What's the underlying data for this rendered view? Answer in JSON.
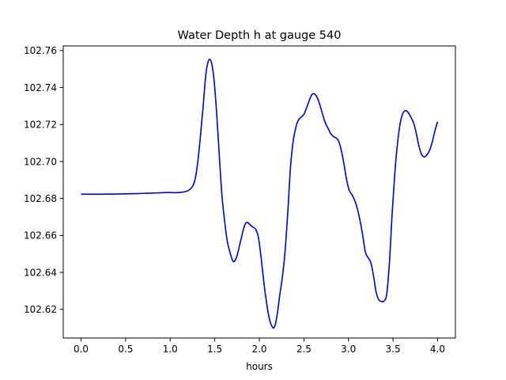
{
  "chart_data": {
    "type": "line",
    "title": "Water Depth h at gauge 540",
    "xlabel": "hours",
    "ylabel": "",
    "xlim": [
      -0.2,
      4.2
    ],
    "ylim": [
      102.6045,
      102.7625
    ],
    "xticks": [
      0.0,
      0.5,
      1.0,
      1.5,
      2.0,
      2.5,
      3.0,
      3.5,
      4.0
    ],
    "xtick_labels": [
      "0.0",
      "0.5",
      "1.0",
      "1.5",
      "2.0",
      "2.5",
      "3.0",
      "3.5",
      "4.0"
    ],
    "yticks": [
      102.62,
      102.64,
      102.66,
      102.68,
      102.7,
      102.72,
      102.74,
      102.76
    ],
    "ytick_labels": [
      "102.62",
      "102.64",
      "102.66",
      "102.68",
      "102.70",
      "102.72",
      "102.74",
      "102.76"
    ],
    "grid": false,
    "series": [
      {
        "color": "#0000cc",
        "x": [
          0.0,
          0.2,
          0.4,
          0.6,
          0.8,
          0.9,
          1.0,
          1.05,
          1.1,
          1.15,
          1.2,
          1.25,
          1.28,
          1.31,
          1.34,
          1.37,
          1.4,
          1.43,
          1.46,
          1.49,
          1.52,
          1.55,
          1.58,
          1.61,
          1.64,
          1.67,
          1.7,
          1.72,
          1.75,
          1.78,
          1.81,
          1.84,
          1.87,
          1.9,
          1.93,
          1.96,
          1.99,
          2.02,
          2.05,
          2.08,
          2.11,
          2.14,
          2.17,
          2.2,
          2.23,
          2.26,
          2.29,
          2.32,
          2.35,
          2.38,
          2.41,
          2.44,
          2.47,
          2.5,
          2.53,
          2.56,
          2.59,
          2.62,
          2.65,
          2.68,
          2.71,
          2.74,
          2.77,
          2.8,
          2.83,
          2.86,
          2.89,
          2.92,
          2.95,
          2.98,
          3.01,
          3.04,
          3.07,
          3.1,
          3.13,
          3.16,
          3.19,
          3.22,
          3.25,
          3.28,
          3.31,
          3.34,
          3.37,
          3.4,
          3.43,
          3.46,
          3.49,
          3.52,
          3.55,
          3.58,
          3.61,
          3.64,
          3.67,
          3.7,
          3.73,
          3.76,
          3.79,
          3.82,
          3.85,
          3.88,
          3.91,
          3.94,
          3.97,
          4.0
        ],
        "y": [
          102.6823,
          102.6823,
          102.6824,
          102.6826,
          102.6829,
          102.6831,
          102.6832,
          102.6831,
          102.6832,
          102.6835,
          102.6842,
          102.6865,
          102.6905,
          102.7,
          102.714,
          102.73,
          102.747,
          102.7545,
          102.754,
          102.745,
          102.727,
          102.704,
          102.682,
          102.668,
          102.657,
          102.651,
          102.6465,
          102.646,
          102.649,
          102.655,
          102.661,
          102.666,
          102.667,
          102.6655,
          102.6645,
          102.6632,
          102.659,
          102.648,
          102.635,
          102.624,
          102.6155,
          102.611,
          102.6105,
          102.617,
          102.628,
          102.638,
          102.652,
          102.673,
          102.697,
          102.711,
          102.7185,
          102.7225,
          102.724,
          102.7255,
          102.729,
          102.733,
          102.7362,
          102.7365,
          102.7345,
          102.7305,
          102.7255,
          102.721,
          102.718,
          102.7152,
          102.7135,
          102.7128,
          102.711,
          102.706,
          102.6985,
          102.69,
          102.6842,
          102.682,
          102.679,
          102.6745,
          102.668,
          102.66,
          102.651,
          102.648,
          102.6455,
          102.6385,
          102.6295,
          102.6252,
          102.6243,
          102.6245,
          102.6285,
          102.6455,
          102.6715,
          102.6935,
          102.7095,
          102.7205,
          102.726,
          102.7275,
          102.7265,
          102.724,
          102.721,
          102.7155,
          102.7085,
          102.7038,
          102.7025,
          102.7035,
          102.706,
          102.7105,
          102.7165,
          102.7215
        ]
      }
    ]
  }
}
